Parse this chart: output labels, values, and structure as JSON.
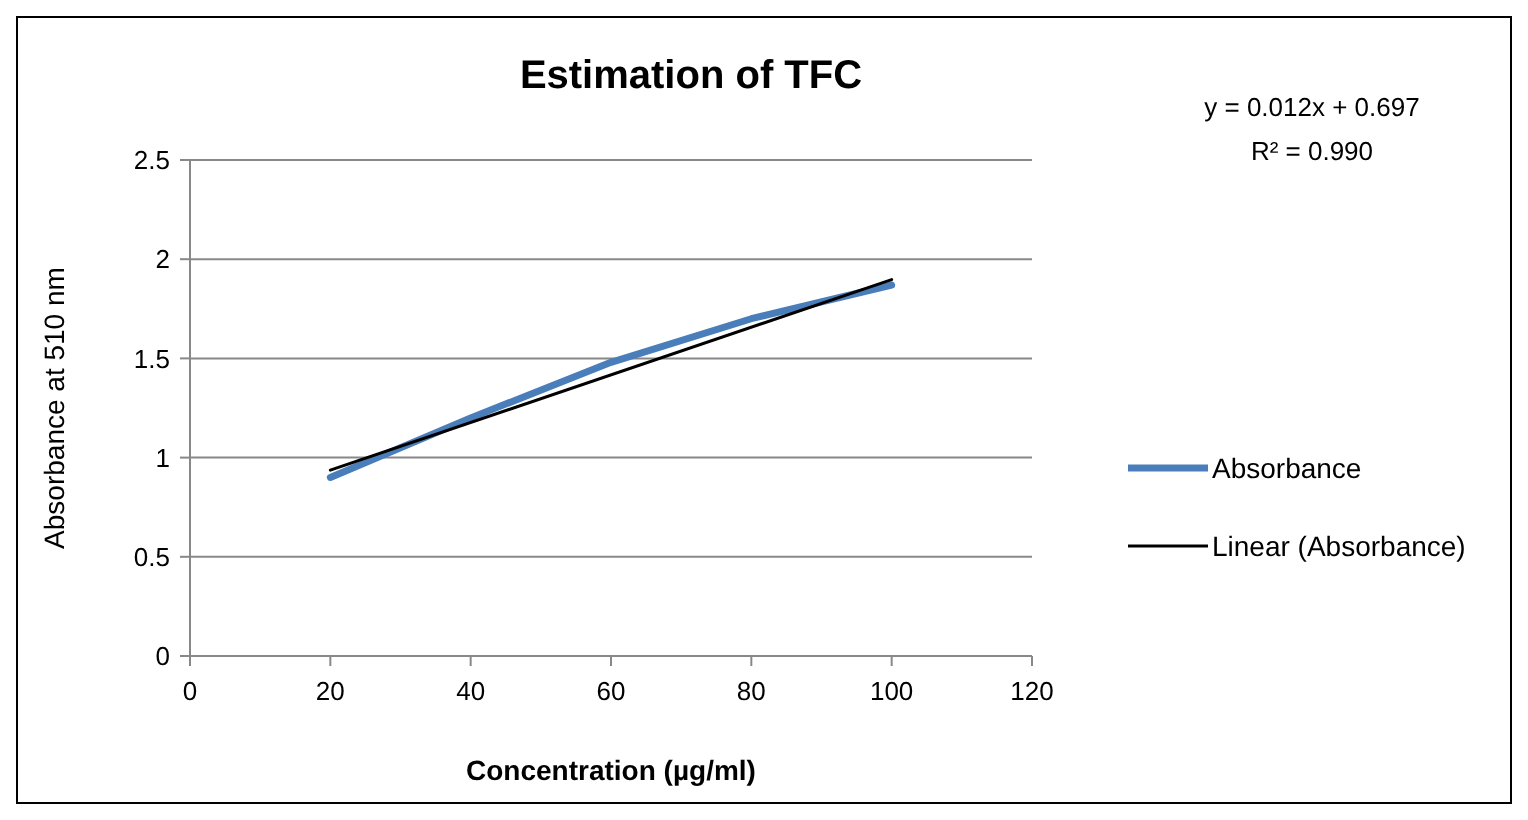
{
  "chart_data": {
    "type": "line",
    "title": "Estimation of TFC",
    "xlabel": "Concentration (µg/ml)",
    "ylabel": "Absorbance at 510 nm",
    "x": [
      20,
      40,
      60,
      80,
      100
    ],
    "series": [
      {
        "name": "Absorbance",
        "color": "#4a7ebb",
        "values": [
          0.9,
          1.2,
          1.48,
          1.7,
          1.87
        ]
      },
      {
        "name": "Linear (Absorbance)",
        "color": "#000000",
        "x": [
          20,
          100
        ],
        "values": [
          0.937,
          1.897
        ]
      }
    ],
    "xlim": [
      0,
      120
    ],
    "xticks": [
      0,
      20,
      40,
      60,
      80,
      100,
      120
    ],
    "ylim": [
      0,
      2.5
    ],
    "yticks": [
      0,
      0.5,
      1,
      1.5,
      2,
      2.5
    ],
    "grid": "y",
    "legend": "right",
    "marker": "none",
    "line_style": "solid",
    "annotations": [
      "y = 0.012x + 0.697",
      "R² = 0.990"
    ]
  }
}
